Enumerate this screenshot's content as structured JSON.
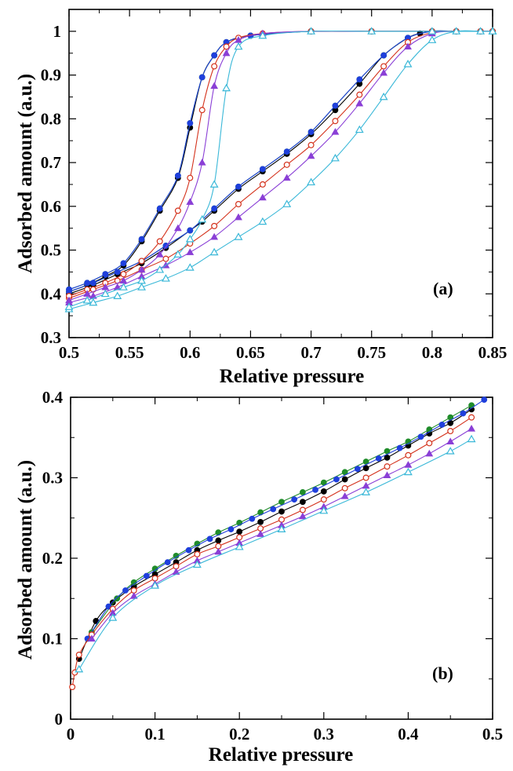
{
  "chart_data": [
    {
      "panel_label": "(a)",
      "type": "scatter",
      "xlabel": "Relative pressure",
      "ylabel": "Adsorbed amount (a.u.)",
      "xlim": [
        0.5,
        0.85
      ],
      "ylim": [
        0.3,
        1.05
      ],
      "xticks": [
        "0.5",
        "0.55",
        "0.6",
        "0.65",
        "0.7",
        "0.75",
        "0.8",
        "0.85"
      ],
      "xtick_values": [
        0.5,
        0.55,
        0.6,
        0.65,
        0.7,
        0.75,
        0.8,
        0.85
      ],
      "yticks": [
        "0.3",
        "0.4",
        "0.5",
        "0.6",
        "0.7",
        "0.8",
        "0.9",
        "1"
      ],
      "ytick_values": [
        0.3,
        0.4,
        0.5,
        0.6,
        0.7,
        0.8,
        0.9,
        1.0
      ],
      "grid": false,
      "series": [
        {
          "color": "#000000",
          "marker": "filled-circle",
          "adsorption": {
            "x": [
              0.5,
              0.52,
              0.54,
              0.56,
              0.58,
              0.6,
              0.61,
              0.62,
              0.64,
              0.66,
              0.68,
              0.7,
              0.72,
              0.74,
              0.76,
              0.78,
              0.79,
              0.8,
              0.82,
              0.84,
              0.85
            ],
            "y": [
              0.4,
              0.42,
              0.445,
              0.47,
              0.505,
              0.545,
              0.565,
              0.59,
              0.64,
              0.68,
              0.72,
              0.765,
              0.82,
              0.88,
              0.945,
              0.985,
              0.995,
              1.0,
              1.0,
              1.0,
              1.0
            ]
          },
          "desorption": {
            "x": [
              0.5,
              0.515,
              0.53,
              0.545,
              0.56,
              0.575,
              0.59,
              0.6,
              0.61,
              0.62,
              0.63,
              0.65,
              0.7,
              0.75,
              0.8,
              0.85
            ],
            "y": [
              0.405,
              0.42,
              0.44,
              0.465,
              0.52,
              0.59,
              0.665,
              0.78,
              0.895,
              0.945,
              0.975,
              0.99,
              1.0,
              1.0,
              1.0,
              1.0
            ]
          }
        },
        {
          "color": "#1f8c2a",
          "marker": "filled-circle",
          "adsorption": {
            "x": [
              0.5,
              0.52,
              0.54,
              0.56,
              0.58,
              0.6,
              0.62,
              0.64,
              0.66,
              0.68,
              0.7,
              0.72,
              0.74,
              0.76,
              0.78,
              0.8,
              0.82,
              0.84,
              0.85
            ],
            "y": [
              0.405,
              0.425,
              0.45,
              0.475,
              0.51,
              0.545,
              0.595,
              0.645,
              0.685,
              0.725,
              0.77,
              0.83,
              0.89,
              0.945,
              0.985,
              1.0,
              1.0,
              1.0,
              1.0
            ]
          },
          "desorption": {
            "x": [
              0.5,
              0.515,
              0.53,
              0.545,
              0.56,
              0.575,
              0.59,
              0.6,
              0.61,
              0.62,
              0.63,
              0.65,
              0.7,
              0.75,
              0.8,
              0.85
            ],
            "y": [
              0.41,
              0.425,
              0.445,
              0.47,
              0.525,
              0.595,
              0.67,
              0.79,
              0.895,
              0.945,
              0.975,
              0.99,
              1.0,
              1.0,
              1.0,
              1.0
            ]
          }
        },
        {
          "color": "#1f3fdc",
          "marker": "filled-circle",
          "adsorption": {
            "x": [
              0.5,
              0.52,
              0.54,
              0.56,
              0.58,
              0.6,
              0.62,
              0.64,
              0.66,
              0.68,
              0.7,
              0.72,
              0.74,
              0.76,
              0.78,
              0.8,
              0.82,
              0.84,
              0.85
            ],
            "y": [
              0.405,
              0.425,
              0.45,
              0.475,
              0.51,
              0.545,
              0.595,
              0.645,
              0.685,
              0.725,
              0.77,
              0.83,
              0.89,
              0.945,
              0.985,
              1.0,
              1.0,
              1.0,
              1.0
            ]
          },
          "desorption": {
            "x": [
              0.5,
              0.515,
              0.53,
              0.545,
              0.56,
              0.575,
              0.59,
              0.6,
              0.61,
              0.62,
              0.63,
              0.65,
              0.7,
              0.75,
              0.8,
              0.85
            ],
            "y": [
              0.41,
              0.425,
              0.445,
              0.47,
              0.525,
              0.595,
              0.67,
              0.79,
              0.895,
              0.945,
              0.975,
              0.99,
              1.0,
              1.0,
              1.0,
              1.0
            ]
          }
        },
        {
          "color": "#d4321c",
          "marker": "open-circle",
          "adsorption": {
            "x": [
              0.5,
              0.52,
              0.54,
              0.56,
              0.58,
              0.6,
              0.62,
              0.64,
              0.66,
              0.68,
              0.7,
              0.72,
              0.74,
              0.76,
              0.78,
              0.8,
              0.82,
              0.84,
              0.85
            ],
            "y": [
              0.39,
              0.41,
              0.43,
              0.455,
              0.48,
              0.515,
              0.555,
              0.605,
              0.65,
              0.695,
              0.74,
              0.795,
              0.855,
              0.92,
              0.975,
              0.997,
              1.0,
              1.0,
              1.0
            ]
          },
          "desorption": {
            "x": [
              0.5,
              0.515,
              0.53,
              0.545,
              0.56,
              0.575,
              0.59,
              0.6,
              0.61,
              0.62,
              0.63,
              0.64,
              0.66,
              0.7,
              0.75,
              0.8,
              0.85
            ],
            "y": [
              0.395,
              0.41,
              0.425,
              0.445,
              0.475,
              0.52,
              0.59,
              0.665,
              0.82,
              0.92,
              0.965,
              0.985,
              0.995,
              1.0,
              1.0,
              1.0,
              1.0
            ]
          }
        },
        {
          "color": "#8a3fd6",
          "marker": "filled-triangle",
          "adsorption": {
            "x": [
              0.5,
              0.52,
              0.54,
              0.56,
              0.58,
              0.6,
              0.62,
              0.64,
              0.66,
              0.68,
              0.7,
              0.72,
              0.74,
              0.76,
              0.78,
              0.8,
              0.82,
              0.84,
              0.85
            ],
            "y": [
              0.38,
              0.395,
              0.415,
              0.44,
              0.465,
              0.495,
              0.53,
              0.575,
              0.62,
              0.665,
              0.715,
              0.77,
              0.835,
              0.905,
              0.965,
              0.995,
              1.0,
              1.0,
              1.0
            ]
          },
          "desorption": {
            "x": [
              0.5,
              0.515,
              0.53,
              0.545,
              0.56,
              0.575,
              0.59,
              0.6,
              0.61,
              0.62,
              0.63,
              0.64,
              0.66,
              0.7,
              0.75,
              0.8,
              0.85
            ],
            "y": [
              0.385,
              0.4,
              0.415,
              0.43,
              0.455,
              0.49,
              0.55,
              0.61,
              0.7,
              0.875,
              0.95,
              0.98,
              0.995,
              1.0,
              1.0,
              1.0,
              1.0
            ]
          }
        },
        {
          "color": "#3ab8d8",
          "marker": "open-triangle",
          "adsorption": {
            "x": [
              0.5,
              0.52,
              0.54,
              0.56,
              0.58,
              0.6,
              0.62,
              0.64,
              0.66,
              0.68,
              0.7,
              0.72,
              0.74,
              0.76,
              0.78,
              0.8,
              0.82,
              0.84,
              0.85
            ],
            "y": [
              0.365,
              0.38,
              0.395,
              0.415,
              0.435,
              0.46,
              0.495,
              0.53,
              0.565,
              0.605,
              0.655,
              0.71,
              0.775,
              0.85,
              0.925,
              0.98,
              1.0,
              1.0,
              1.0
            ]
          },
          "desorption": {
            "x": [
              0.5,
              0.515,
              0.53,
              0.545,
              0.56,
              0.575,
              0.59,
              0.6,
              0.61,
              0.62,
              0.63,
              0.64,
              0.66,
              0.7,
              0.75,
              0.8,
              0.85
            ],
            "y": [
              0.37,
              0.385,
              0.4,
              0.415,
              0.43,
              0.455,
              0.49,
              0.525,
              0.57,
              0.65,
              0.87,
              0.965,
              0.99,
              1.0,
              1.0,
              1.0,
              1.0
            ]
          }
        }
      ]
    },
    {
      "panel_label": "(b)",
      "type": "scatter",
      "xlabel": "Relative pressure",
      "ylabel": "Adsorbed amount (a.u.)",
      "xlim": [
        0,
        0.5
      ],
      "ylim": [
        0,
        0.4
      ],
      "xticks": [
        "0",
        "0.1",
        "0.2",
        "0.3",
        "0.4",
        "0.5"
      ],
      "xtick_values": [
        0,
        0.1,
        0.2,
        0.3,
        0.4,
        0.5
      ],
      "yticks": [
        "0",
        "0.1",
        "0.2",
        "0.3",
        "0.4"
      ],
      "ytick_values": [
        0,
        0.1,
        0.2,
        0.3,
        0.4
      ],
      "grid": false,
      "series": [
        {
          "color": "#000000",
          "marker": "filled-circle",
          "x": [
            0.01,
            0.03,
            0.05,
            0.075,
            0.1,
            0.125,
            0.15,
            0.175,
            0.2,
            0.225,
            0.25,
            0.275,
            0.3,
            0.325,
            0.35,
            0.375,
            0.4,
            0.425,
            0.45,
            0.475
          ],
          "y": [
            0.075,
            0.122,
            0.145,
            0.165,
            0.18,
            0.195,
            0.21,
            0.222,
            0.233,
            0.245,
            0.258,
            0.27,
            0.283,
            0.298,
            0.312,
            0.325,
            0.34,
            0.355,
            0.368,
            0.385
          ]
        },
        {
          "color": "#1f8c2a",
          "marker": "filled-circle",
          "x": [
            0.025,
            0.055,
            0.075,
            0.1,
            0.125,
            0.15,
            0.175,
            0.2,
            0.225,
            0.25,
            0.275,
            0.3,
            0.325,
            0.35,
            0.375,
            0.4,
            0.425,
            0.45,
            0.475
          ],
          "y": [
            0.108,
            0.15,
            0.17,
            0.187,
            0.203,
            0.218,
            0.232,
            0.244,
            0.257,
            0.27,
            0.282,
            0.294,
            0.307,
            0.32,
            0.333,
            0.345,
            0.36,
            0.375,
            0.39
          ]
        },
        {
          "color": "#1f3fdc",
          "marker": "filled-circle",
          "x": [
            0.02,
            0.045,
            0.065,
            0.09,
            0.115,
            0.14,
            0.165,
            0.19,
            0.215,
            0.24,
            0.265,
            0.29,
            0.315,
            0.34,
            0.365,
            0.39,
            0.415,
            0.44,
            0.465,
            0.49
          ],
          "y": [
            0.1,
            0.14,
            0.16,
            0.178,
            0.195,
            0.21,
            0.224,
            0.236,
            0.249,
            0.261,
            0.273,
            0.285,
            0.298,
            0.311,
            0.324,
            0.337,
            0.351,
            0.366,
            0.38,
            0.397
          ]
        },
        {
          "color": "#d4321c",
          "marker": "open-circle",
          "x": [
            0.002,
            0.005,
            0.01,
            0.025,
            0.05,
            0.075,
            0.1,
            0.125,
            0.15,
            0.175,
            0.2,
            0.225,
            0.25,
            0.275,
            0.3,
            0.325,
            0.35,
            0.375,
            0.4,
            0.425,
            0.45,
            0.475
          ],
          "y": [
            0.04,
            0.058,
            0.08,
            0.105,
            0.137,
            0.16,
            0.175,
            0.19,
            0.205,
            0.215,
            0.226,
            0.237,
            0.248,
            0.26,
            0.273,
            0.287,
            0.3,
            0.314,
            0.328,
            0.343,
            0.358,
            0.375
          ]
        },
        {
          "color": "#8a3fd6",
          "marker": "filled-triangle",
          "x": [
            0.025,
            0.05,
            0.075,
            0.1,
            0.125,
            0.15,
            0.175,
            0.2,
            0.225,
            0.25,
            0.275,
            0.3,
            0.325,
            0.35,
            0.375,
            0.4,
            0.425,
            0.45,
            0.475
          ],
          "y": [
            0.1,
            0.132,
            0.153,
            0.168,
            0.183,
            0.197,
            0.208,
            0.219,
            0.23,
            0.241,
            0.252,
            0.264,
            0.277,
            0.29,
            0.303,
            0.316,
            0.33,
            0.345,
            0.361
          ]
        },
        {
          "color": "#3ab8d8",
          "marker": "open-triangle",
          "x": [
            0.01,
            0.05,
            0.1,
            0.15,
            0.2,
            0.25,
            0.3,
            0.35,
            0.4,
            0.45,
            0.475
          ],
          "y": [
            0.062,
            0.126,
            0.166,
            0.192,
            0.214,
            0.236,
            0.259,
            0.282,
            0.307,
            0.333,
            0.348
          ]
        }
      ]
    }
  ]
}
